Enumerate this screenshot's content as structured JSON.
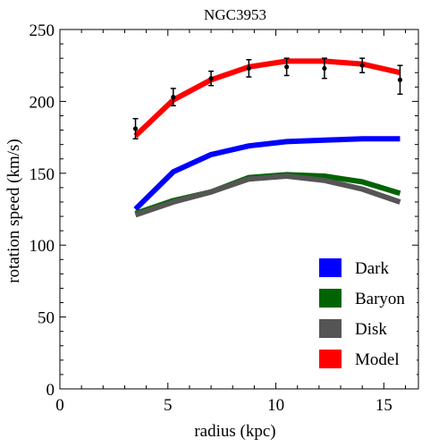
{
  "chart_data": {
    "type": "line",
    "title": "NGC3953",
    "xlabel": "radius (kpc)",
    "ylabel": "rotation speed (km/s)",
    "xlim": [
      0,
      16.6
    ],
    "ylim": [
      0,
      250
    ],
    "xticks": [
      0,
      5,
      10,
      15
    ],
    "yticks": [
      0,
      50,
      100,
      150,
      200,
      250
    ],
    "x": [
      3.5,
      5.25,
      7.0,
      8.75,
      10.5,
      12.25,
      14.0,
      15.75
    ],
    "series": [
      {
        "name": "Dark",
        "color": "#0000ff",
        "values": [
          125,
          151,
          163,
          169,
          172,
          173,
          174,
          174
        ]
      },
      {
        "name": "Baryon",
        "color": "#006400",
        "values": [
          122,
          131,
          137,
          147,
          149,
          148,
          144,
          136
        ]
      },
      {
        "name": "Disk",
        "color": "#555555",
        "values": [
          121,
          130,
          137,
          146,
          148,
          145,
          139,
          130
        ]
      },
      {
        "name": "Model",
        "color": "#ff0000",
        "values": [
          176,
          201,
          215,
          224,
          228,
          228,
          226,
          220
        ]
      }
    ],
    "observations": {
      "x": [
        3.5,
        5.25,
        7.0,
        8.75,
        10.5,
        12.25,
        14.0,
        15.75
      ],
      "y": [
        181,
        203,
        216,
        223,
        224,
        223,
        225,
        215
      ],
      "error": [
        7,
        6,
        5,
        6,
        6,
        7,
        5,
        10
      ]
    },
    "legend_position": "bottom-right",
    "grid": false
  }
}
